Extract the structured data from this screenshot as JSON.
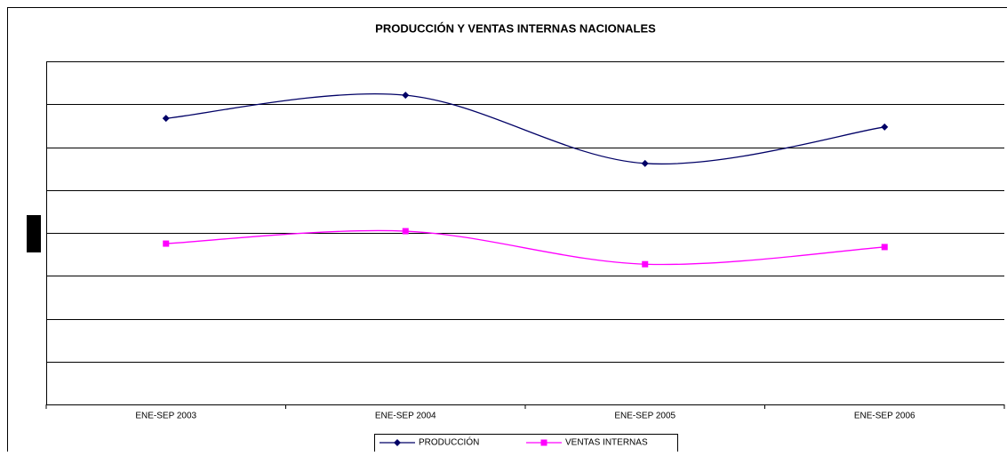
{
  "chart_data": {
    "type": "line",
    "title": "PRODUCCIÓN Y VENTAS INTERNAS NACIONALES",
    "categories": [
      "ENE-SEP 2003",
      "ENE-SEP 2004",
      "ENE-SEP 2005",
      "ENE-SEP 2006"
    ],
    "series": [
      {
        "name": "PRODUCCIÓN",
        "color": "#000066",
        "marker": "diamond",
        "values": [
          6.67,
          7.21,
          5.62,
          6.47
        ]
      },
      {
        "name": "VENTAS INTERNAS",
        "color": "#ff00ff",
        "marker": "square",
        "values": [
          3.75,
          4.04,
          3.27,
          3.67
        ]
      }
    ],
    "ylim": [
      0,
      8
    ],
    "yticks": [
      0,
      1,
      2,
      3,
      4,
      5,
      6,
      7,
      8
    ],
    "grid": true,
    "smooth": true,
    "legend": "bottom"
  }
}
